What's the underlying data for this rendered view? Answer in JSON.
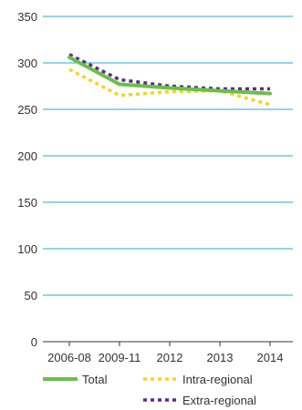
{
  "chart_data": {
    "type": "line",
    "categories": [
      "2006-08",
      "2009-11",
      "2012",
      "2013",
      "2014"
    ],
    "ylim": [
      0,
      350
    ],
    "y_ticks": [
      0,
      50,
      100,
      150,
      200,
      250,
      300,
      350
    ],
    "grid": true,
    "legend_position": "bottom",
    "series": [
      {
        "name": "Total",
        "values": [
          306,
          277,
          273,
          270,
          267
        ],
        "color": "#6abf4b",
        "style": "solid"
      },
      {
        "name": "Intra-regional",
        "values": [
          293,
          265,
          269,
          270,
          255
        ],
        "color": "#f7d51d",
        "style": "dotted"
      },
      {
        "name": "Extra-regional",
        "values": [
          309,
          282,
          275,
          272,
          272
        ],
        "color": "#5b2c83",
        "style": "dotted"
      }
    ]
  }
}
